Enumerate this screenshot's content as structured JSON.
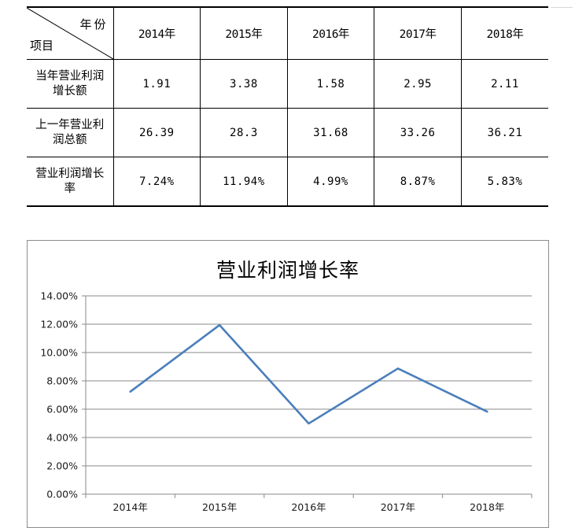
{
  "table": {
    "corner_top": "年份",
    "corner_bottom": "项目",
    "years": [
      "2014年",
      "2015年",
      "2016年",
      "2017年",
      "2018年"
    ],
    "rows": [
      {
        "label": "当年营业利润增长额",
        "values": [
          "1.91",
          "3.38",
          "1.58",
          "2.95",
          "2.11"
        ]
      },
      {
        "label": "上一年营业利润总额",
        "values": [
          "26.39",
          "28.3",
          "31.68",
          "33.26",
          "36.21"
        ]
      },
      {
        "label": "营业利润增长率",
        "values": [
          "7.24%",
          "11.94%",
          "4.99%",
          "8.87%",
          "5.83%"
        ]
      }
    ]
  },
  "chart_data": {
    "type": "line",
    "title": "营业利润增长率",
    "categories": [
      "2014年",
      "2015年",
      "2016年",
      "2017年",
      "2018年"
    ],
    "series": [
      {
        "values": [
          7.24,
          11.94,
          4.99,
          8.87,
          5.83
        ],
        "color": "#4a7ebb"
      }
    ],
    "y_ticks": [
      "0.00%",
      "2.00%",
      "4.00%",
      "6.00%",
      "8.00%",
      "10.00%",
      "12.00%",
      "14.00%"
    ],
    "ylim": [
      0,
      14
    ],
    "y_unit": "%",
    "grid": true,
    "legend": "none",
    "xlabel": "",
    "ylabel": ""
  }
}
